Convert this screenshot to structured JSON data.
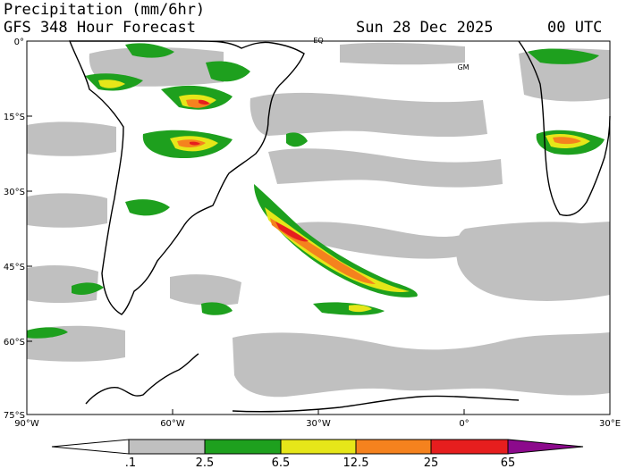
{
  "header": {
    "title": "Precipitation (mm/6hr)",
    "subtitle": "GFS 348 Hour Forecast",
    "date": "Sun 28 Dec 2025",
    "time": "00 UTC"
  },
  "map": {
    "projection": "cylindrical",
    "lon_range": [
      -90,
      30
    ],
    "lat_range": [
      -75,
      0
    ],
    "lat_labels": [
      "0°",
      "15°S",
      "30°S",
      "45°S",
      "60°S",
      "75°S"
    ],
    "lon_labels": [
      "90°W",
      "60°W",
      "30°W",
      "0°",
      "30°E"
    ],
    "place_labels": [
      "EQ",
      "GM"
    ],
    "land_color": "#ffffff",
    "ocean_color": "#ffffff",
    "coast_color": "#000000"
  },
  "colorbar": {
    "ticks": [
      ".1",
      "2.5",
      "6.5",
      "12.5",
      "25",
      "65"
    ],
    "colors": [
      "#ffffff",
      "#c0c0c0",
      "#1ea01e",
      "#e6e619",
      "#f5821e",
      "#e61e1e",
      "#8c0a8c"
    ]
  },
  "precip_colors": {
    "light": "#c0c0c0",
    "moderate": "#1ea01e",
    "heavy": "#e6e619",
    "very_heavy": "#f5821e",
    "extreme": "#e61e1e"
  }
}
